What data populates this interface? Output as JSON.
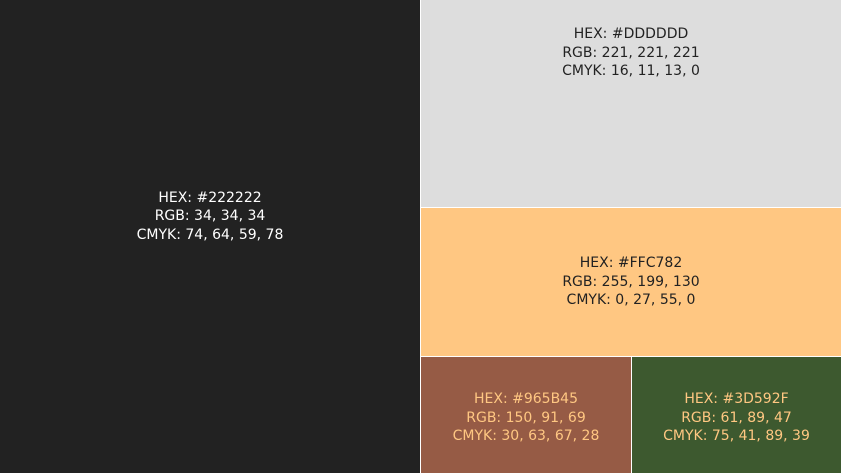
{
  "swatches": [
    {
      "id": "dark",
      "background": "#222222",
      "text_color": "#FFFFFF",
      "hex": "HEX: #222222",
      "rgb": "RGB: 34, 34, 34",
      "cmyk": "CMYK: 74, 64, 59, 78"
    },
    {
      "id": "light",
      "background": "#DDDDDD",
      "text_color": "#222222",
      "hex": "HEX: #DDDDDD",
      "rgb": "RGB: 221, 221, 221",
      "cmyk": "CMYK: 16, 11, 13, 0"
    },
    {
      "id": "peach",
      "background": "#FFC782",
      "text_color": "#222222",
      "hex": "HEX: #FFC782",
      "rgb": "RGB: 255, 199, 130",
      "cmyk": "CMYK: 0, 27, 55, 0"
    },
    {
      "id": "brown",
      "background": "#965B45",
      "text_color": "#FFC782",
      "hex": "HEX: #965B45",
      "rgb": "RGB: 150, 91, 69",
      "cmyk": "CMYK: 30, 63, 67, 28"
    },
    {
      "id": "green",
      "background": "#3D592F",
      "text_color": "#FFC782",
      "hex": "HEX: #3D592F",
      "rgb": "RGB: 61, 89, 47",
      "cmyk": "CMYK: 75, 41, 89, 39"
    }
  ]
}
